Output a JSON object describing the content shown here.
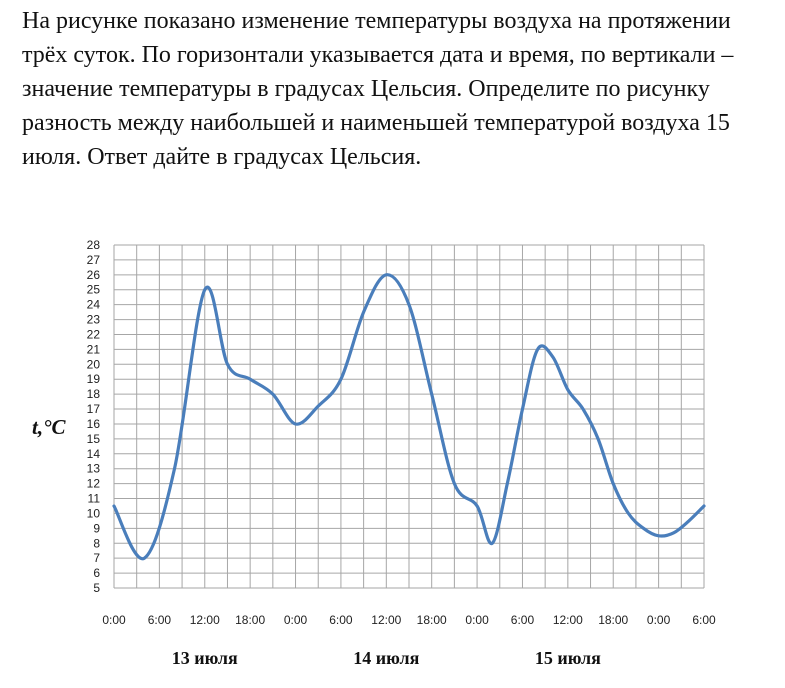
{
  "problem_text": "На рисунке показано изменение температуры воздуха на протяжении трёх суток. По горизонтали указывается дата и время, по вертикали – значение температуры в градусах Цельсия. Определите по рисунку разность между наибольшей и наименьшей температурой воздуха 15 июля. Ответ дайте в градусах Цельсия.",
  "chart_data": {
    "type": "line",
    "ylabel": "t,°C",
    "ylim": [
      5,
      28
    ],
    "y_ticks": [
      5,
      6,
      7,
      8,
      9,
      10,
      11,
      12,
      13,
      14,
      15,
      16,
      17,
      18,
      19,
      20,
      21,
      22,
      23,
      24,
      25,
      26,
      27,
      28
    ],
    "x_tick_labels": [
      "0:00",
      "6:00",
      "12:00",
      "18:00",
      "0:00",
      "6:00",
      "12:00",
      "18:00",
      "0:00",
      "6:00",
      "12:00",
      "18:00",
      "0:00",
      "6:00"
    ],
    "day_labels": [
      "13 июля",
      "14 июля",
      "15 июля"
    ],
    "grid": true,
    "line_color": "#4a7ebb",
    "series": [
      {
        "x_hours": [
          0,
          4,
          8,
          12,
          15,
          18,
          21,
          24,
          27,
          30,
          33,
          36,
          39,
          42,
          45,
          48,
          50,
          52,
          54,
          56,
          58,
          60,
          62,
          64,
          66,
          68,
          70,
          72,
          74,
          76,
          78
        ],
        "values": [
          10.5,
          7,
          13,
          25,
          20,
          19,
          18,
          16,
          17.2,
          19,
          23.5,
          26,
          24,
          18,
          12,
          10.5,
          8,
          12,
          17,
          21,
          20.5,
          18.3,
          17,
          15,
          12,
          10,
          9,
          8.5,
          8.7,
          9.5,
          10.5
        ]
      }
    ]
  }
}
